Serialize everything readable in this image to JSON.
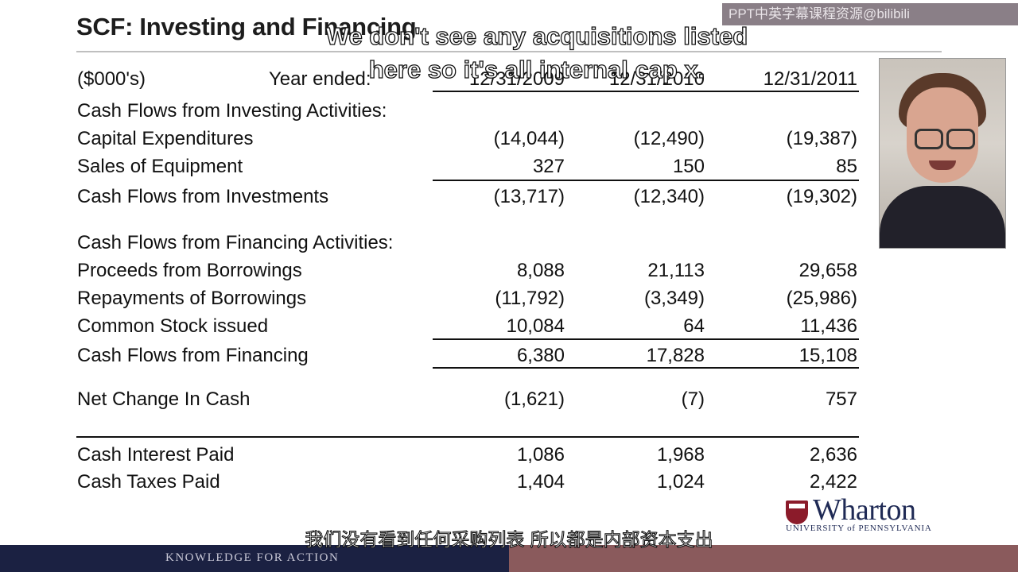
{
  "slide": {
    "title": "SCF: Investing and Financing"
  },
  "watermark": "PPT中英字幕课程资源@bilibili",
  "captions": {
    "en_line1": "We don't see any acquisitions listed",
    "en_line2": "here so it's all internal cap x.",
    "cn": "我们没有看到任何采购列表 所以都是内部资本支出"
  },
  "table": {
    "units": "($000's)",
    "year_label": "Year ended:",
    "years": [
      "12/31/2009",
      "12/31/2010",
      "12/31/2011"
    ],
    "investing_header": "Cash Flows from Investing Activities:",
    "capex": {
      "label": "Capital Expenditures",
      "values": [
        "(14,044)",
        "(12,490)",
        "(19,387)"
      ]
    },
    "sales_equipment": {
      "label": "Sales of Equipment",
      "values": [
        "327",
        "150",
        "85"
      ]
    },
    "cf_investments": {
      "label": "Cash Flows from Investments",
      "values": [
        "(13,717)",
        "(12,340)",
        "(19,302)"
      ]
    },
    "financing_header": "Cash Flows from Financing Activities:",
    "proceeds": {
      "label": "Proceeds from Borrowings",
      "values": [
        "8,088",
        "21,113",
        "29,658"
      ]
    },
    "repayments": {
      "label": "Repayments of Borrowings",
      "values": [
        "(11,792)",
        "(3,349)",
        "(25,986)"
      ]
    },
    "common_stock": {
      "label": "Common Stock issued",
      "values": [
        "10,084",
        "64",
        "11,436"
      ]
    },
    "cf_financing": {
      "label": "Cash Flows from Financing",
      "values": [
        "6,380",
        "17,828",
        "15,108"
      ]
    },
    "net_change": {
      "label": "Net Change In Cash",
      "values": [
        "(1,621)",
        "(7)",
        "757"
      ]
    },
    "interest_paid": {
      "label": "Cash Interest Paid",
      "values": [
        "1,086",
        "1,968",
        "2,636"
      ]
    },
    "taxes_paid": {
      "label": "Cash Taxes Paid",
      "values": [
        "1,404",
        "1,024",
        "2,422"
      ]
    }
  },
  "brand": {
    "name": "Wharton",
    "university": "UNIVERSITY of PENNSYLVANIA",
    "tagline": "KNOWLEDGE FOR ACTION"
  }
}
